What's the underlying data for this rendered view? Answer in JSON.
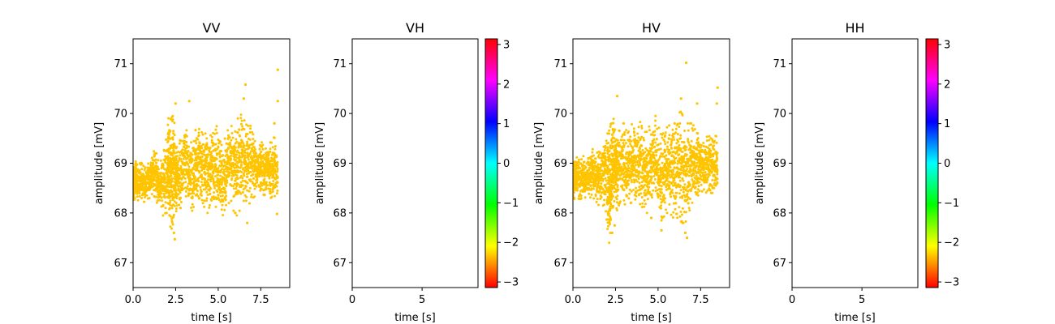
{
  "chart_data": [
    {
      "type": "scatter",
      "title": "VV",
      "xlabel": "time [s]",
      "ylabel": "amplitude [mV]",
      "xlim": [
        0,
        9.2
      ],
      "ylim": [
        66.5,
        71.5
      ],
      "xticks": [
        "0.0",
        "2.5",
        "5.0",
        "7.5"
      ],
      "xtick_values": [
        0,
        2.5,
        5,
        7.5
      ],
      "yticks": [
        "67",
        "68",
        "69",
        "70",
        "71"
      ],
      "ytick_values": [
        67,
        68,
        69,
        70,
        71
      ],
      "point_color": "#ffc400",
      "series": [
        {
          "x": [
            0.0,
            0.01,
            0.05,
            0.1,
            0.15,
            0.2,
            0.3,
            0.4,
            0.5,
            0.6,
            0.7,
            0.8,
            0.9,
            1.0,
            1.1,
            1.2,
            1.3,
            1.4,
            1.5,
            1.6,
            1.7,
            1.8,
            1.9,
            2.0,
            2.05,
            2.1,
            2.15,
            2.2,
            2.25,
            2.3,
            2.35,
            2.4,
            2.45,
            2.5,
            2.55,
            2.6,
            2.7,
            2.8,
            2.9,
            3.0,
            3.1,
            3.2,
            3.3,
            3.4,
            3.5,
            3.6,
            3.7,
            3.8,
            3.9,
            4.0,
            4.1,
            4.2,
            4.3,
            4.4,
            4.5,
            4.6,
            4.7,
            4.8,
            4.9,
            5.0,
            5.1,
            5.2,
            5.3,
            5.4,
            5.5,
            5.6,
            5.7,
            5.8,
            5.9,
            6.0,
            6.1,
            6.2,
            6.3,
            6.4,
            6.5,
            6.6,
            6.7,
            6.8,
            6.9,
            7.0,
            7.1,
            7.2,
            7.3,
            7.4,
            7.5,
            7.6,
            7.7,
            7.8,
            7.9,
            8.0,
            8.1,
            8.2,
            8.3,
            8.4,
            8.5
          ],
          "y_center": [
            68.55,
            68.55,
            68.6,
            68.65,
            68.7,
            68.65,
            68.6,
            68.7,
            68.65,
            68.6,
            68.55,
            68.6,
            68.65,
            68.7,
            68.7,
            68.8,
            68.75,
            68.7,
            68.6,
            68.5,
            68.55,
            68.6,
            68.7,
            68.8,
            68.9,
            69.0,
            68.9,
            68.8,
            68.7,
            68.75,
            68.85,
            68.9,
            68.85,
            68.8,
            68.75,
            68.7,
            68.75,
            68.8,
            68.9,
            69.0,
            68.95,
            68.9,
            68.8,
            68.75,
            68.7,
            68.8,
            68.9,
            69.0,
            69.0,
            68.95,
            68.9,
            68.85,
            68.8,
            68.75,
            68.85,
            68.95,
            69.0,
            69.05,
            68.9,
            68.8,
            68.7,
            68.65,
            68.7,
            68.8,
            68.9,
            68.95,
            69.0,
            68.95,
            68.9,
            68.85,
            68.9,
            68.95,
            69.05,
            69.1,
            69.0,
            68.95,
            68.9,
            68.95,
            69.0,
            68.95,
            68.9,
            68.85,
            68.9,
            68.95,
            68.95,
            68.9,
            68.85,
            68.9,
            68.95,
            68.9,
            68.85,
            68.9,
            68.95,
            68.9,
            68.85
          ],
          "y_spread": [
            0.35,
            0.35,
            0.35,
            0.35,
            0.35,
            0.35,
            0.35,
            0.35,
            0.35,
            0.35,
            0.35,
            0.35,
            0.35,
            0.4,
            0.4,
            0.45,
            0.45,
            0.5,
            0.5,
            0.55,
            0.6,
            0.65,
            0.7,
            0.8,
            0.9,
            1.0,
            1.1,
            1.1,
            1.15,
            1.2,
            1.1,
            1.0,
            0.9,
            0.8,
            0.7,
            0.7,
            0.65,
            0.7,
            0.75,
            0.8,
            0.75,
            0.7,
            0.7,
            0.7,
            0.75,
            0.8,
            0.8,
            0.75,
            0.7,
            0.7,
            0.7,
            0.75,
            0.8,
            0.75,
            0.7,
            0.7,
            0.75,
            0.8,
            0.85,
            0.9,
            0.85,
            0.8,
            0.75,
            0.7,
            0.7,
            0.75,
            0.8,
            0.8,
            0.85,
            0.9,
            0.95,
            1.0,
            1.05,
            1.0,
            0.95,
            0.9,
            0.85,
            0.8,
            0.75,
            0.7,
            0.6,
            0.55,
            0.5,
            0.5,
            0.5,
            0.5,
            0.5,
            0.5,
            0.5,
            0.55,
            0.55,
            0.55,
            0.6,
            0.6,
            0.55
          ],
          "outliers": [
            [
              8.5,
              70.88
            ],
            [
              8.5,
              70.25
            ],
            [
              6.6,
              70.58
            ],
            [
              6.5,
              70.3
            ],
            [
              3.3,
              70.25
            ],
            [
              2.5,
              70.2
            ],
            [
              8.3,
              69.8
            ],
            [
              2.45,
              67.47
            ],
            [
              2.4,
              67.6
            ],
            [
              6.7,
              67.8
            ],
            [
              8.45,
              67.98
            ],
            [
              6.0,
              68.0
            ]
          ]
        }
      ]
    },
    {
      "type": "scatter",
      "title": "VH",
      "xlabel": "time [s]",
      "ylabel": "amplitude [mV]",
      "xlim": [
        0,
        9
      ],
      "ylim": [
        66.5,
        71.5
      ],
      "xticks": [
        "0",
        "5"
      ],
      "xtick_values": [
        0,
        5
      ],
      "yticks": [
        "67",
        "68",
        "69",
        "70",
        "71"
      ],
      "ytick_values": [
        67,
        68,
        69,
        70,
        71
      ],
      "series": [],
      "colorbar": {
        "ticks": [
          "3",
          "2",
          "1",
          "0",
          "−1",
          "−2",
          "−3"
        ],
        "tick_values": [
          3,
          2,
          1,
          0,
          -1,
          -2,
          -3
        ],
        "range": [
          -3.1416,
          3.1416
        ]
      }
    },
    {
      "type": "scatter",
      "title": "HV",
      "xlabel": "time [s]",
      "ylabel": "amplitude [mV]",
      "xlim": [
        0,
        9.2
      ],
      "ylim": [
        66.5,
        71.5
      ],
      "xticks": [
        "0.0",
        "2.5",
        "5.0",
        "7.5"
      ],
      "xtick_values": [
        0,
        2.5,
        5,
        7.5
      ],
      "yticks": [
        "67",
        "68",
        "69",
        "70",
        "71"
      ],
      "ytick_values": [
        67,
        68,
        69,
        70,
        71
      ],
      "point_color": "#ffc400",
      "series": [
        {
          "x": [
            0.0,
            0.01,
            0.05,
            0.1,
            0.15,
            0.2,
            0.3,
            0.4,
            0.5,
            0.6,
            0.7,
            0.8,
            0.9,
            1.0,
            1.1,
            1.2,
            1.3,
            1.4,
            1.5,
            1.6,
            1.7,
            1.8,
            1.9,
            2.0,
            2.05,
            2.1,
            2.15,
            2.2,
            2.25,
            2.3,
            2.35,
            2.4,
            2.45,
            2.5,
            2.55,
            2.6,
            2.7,
            2.8,
            2.9,
            3.0,
            3.1,
            3.2,
            3.3,
            3.4,
            3.5,
            3.6,
            3.7,
            3.8,
            3.9,
            4.0,
            4.1,
            4.2,
            4.3,
            4.4,
            4.5,
            4.6,
            4.7,
            4.8,
            4.9,
            5.0,
            5.1,
            5.2,
            5.3,
            5.4,
            5.5,
            5.6,
            5.7,
            5.8,
            5.9,
            6.0,
            6.1,
            6.2,
            6.3,
            6.4,
            6.5,
            6.6,
            6.7,
            6.8,
            6.9,
            7.0,
            7.1,
            7.2,
            7.3,
            7.4,
            7.5,
            7.6,
            7.7,
            7.8,
            7.9,
            8.0,
            8.1,
            8.2,
            8.3,
            8.4,
            8.5
          ],
          "y_center": [
            68.6,
            68.6,
            68.65,
            68.7,
            68.7,
            68.75,
            68.7,
            68.65,
            68.7,
            68.75,
            68.7,
            68.65,
            68.7,
            68.75,
            68.8,
            68.8,
            68.75,
            68.7,
            68.7,
            68.75,
            68.8,
            68.85,
            68.8,
            68.7,
            68.6,
            68.5,
            68.55,
            68.6,
            68.7,
            68.8,
            68.9,
            69.0,
            69.0,
            69.0,
            68.9,
            68.85,
            68.9,
            69.0,
            69.0,
            68.95,
            68.9,
            68.85,
            68.9,
            69.0,
            69.05,
            69.0,
            68.95,
            69.0,
            69.05,
            69.0,
            68.9,
            68.85,
            68.8,
            68.85,
            68.9,
            68.95,
            69.0,
            69.05,
            68.95,
            68.85,
            68.75,
            68.7,
            68.75,
            68.8,
            68.85,
            68.9,
            68.95,
            68.9,
            68.85,
            68.8,
            68.85,
            68.9,
            68.95,
            68.9,
            68.85,
            68.8,
            68.85,
            68.9,
            68.95,
            69.0,
            69.0,
            68.95,
            68.95,
            69.0,
            69.0,
            68.95,
            68.9,
            68.95,
            69.0,
            69.0,
            68.95,
            68.95,
            69.0,
            69.0,
            68.95
          ],
          "y_spread": [
            0.35,
            0.35,
            0.4,
            0.4,
            0.4,
            0.4,
            0.4,
            0.4,
            0.4,
            0.4,
            0.4,
            0.4,
            0.4,
            0.45,
            0.45,
            0.5,
            0.5,
            0.5,
            0.55,
            0.6,
            0.65,
            0.7,
            0.8,
            0.9,
            1.0,
            1.1,
            1.15,
            1.2,
            1.1,
            1.0,
            0.95,
            0.9,
            0.85,
            0.85,
            0.8,
            0.8,
            0.75,
            0.75,
            0.8,
            0.85,
            0.8,
            0.75,
            0.75,
            0.8,
            0.8,
            0.8,
            0.75,
            0.8,
            0.85,
            0.85,
            0.8,
            0.8,
            0.8,
            0.85,
            0.85,
            0.9,
            0.9,
            0.95,
            0.95,
            0.95,
            0.9,
            0.85,
            0.85,
            0.85,
            0.9,
            0.95,
            0.95,
            0.95,
            0.95,
            1.0,
            1.0,
            1.05,
            1.1,
            1.1,
            1.05,
            1.0,
            0.95,
            0.9,
            0.85,
            0.8,
            0.75,
            0.7,
            0.65,
            0.6,
            0.55,
            0.55,
            0.55,
            0.55,
            0.55,
            0.55,
            0.55,
            0.55,
            0.55,
            0.55,
            0.55
          ],
          "outliers": [
            [
              6.65,
              71.02
            ],
            [
              8.5,
              70.52
            ],
            [
              8.45,
              70.2
            ],
            [
              6.35,
              70.3
            ],
            [
              2.6,
              70.35
            ],
            [
              7.3,
              70.2
            ],
            [
              2.3,
              67.6
            ],
            [
              6.7,
              67.5
            ],
            [
              6.6,
              67.6
            ],
            [
              5.2,
              67.65
            ],
            [
              4.6,
              67.9
            ],
            [
              2.45,
              67.75
            ]
          ]
        }
      ]
    },
    {
      "type": "scatter",
      "title": "HH",
      "xlabel": "time [s]",
      "ylabel": "amplitude [mV]",
      "xlim": [
        0,
        9
      ],
      "ylim": [
        66.5,
        71.5
      ],
      "xticks": [
        "0",
        "5"
      ],
      "xtick_values": [
        0,
        5
      ],
      "yticks": [
        "67",
        "68",
        "69",
        "70",
        "71"
      ],
      "ytick_values": [
        67,
        68,
        69,
        70,
        71
      ],
      "series": [],
      "colorbar": {
        "ticks": [
          "3",
          "2",
          "1",
          "0",
          "−1",
          "−2",
          "−3"
        ],
        "tick_values": [
          3,
          2,
          1,
          0,
          -1,
          -2,
          -3
        ],
        "range": [
          -3.1416,
          3.1416
        ]
      }
    }
  ]
}
